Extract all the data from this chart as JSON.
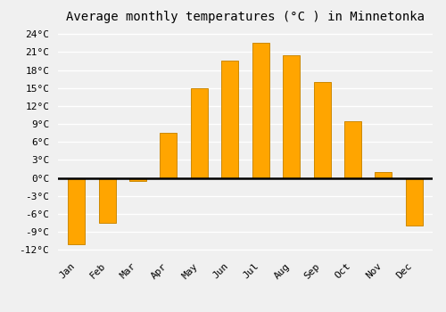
{
  "title": "Average monthly temperatures (°C ) in Minnetonka",
  "months": [
    "Jan",
    "Feb",
    "Mar",
    "Apr",
    "May",
    "Jun",
    "Jul",
    "Aug",
    "Sep",
    "Oct",
    "Nov",
    "Dec"
  ],
  "values": [
    -11.0,
    -7.5,
    -0.5,
    7.5,
    15.0,
    19.5,
    22.5,
    20.5,
    16.0,
    9.5,
    1.0,
    -8.0
  ],
  "bar_color": "#FFA500",
  "bar_edge_color": "#CC8800",
  "yticks": [
    -12,
    -9,
    -6,
    -3,
    0,
    3,
    6,
    9,
    12,
    15,
    18,
    21,
    24
  ],
  "ytick_labels": [
    "-12°C",
    "-9°C",
    "-6°C",
    "-3°C",
    "0°C",
    "3°C",
    "6°C",
    "9°C",
    "12°C",
    "15°C",
    "18°C",
    "21°C",
    "24°C"
  ],
  "ylim": [
    -13,
    25
  ],
  "background_color": "#f0f0f0",
  "grid_color": "#ffffff",
  "title_fontsize": 10,
  "tick_fontsize": 8,
  "bar_width": 0.55,
  "figsize": [
    5.0,
    3.5
  ],
  "dpi": 100
}
